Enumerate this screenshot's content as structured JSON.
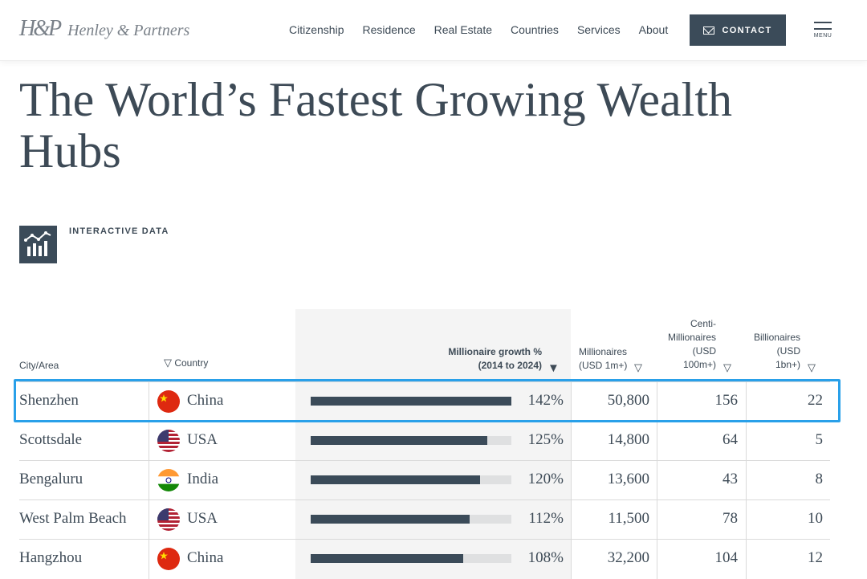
{
  "header": {
    "logo_mark": "H&P",
    "logo_text": "Henley & Partners",
    "nav": [
      "Citizenship",
      "Residence",
      "Real Estate",
      "Countries",
      "Services",
      "About"
    ],
    "contact_label": "CONTACT",
    "menu_label": "MENU"
  },
  "page_title": "The World’s Fastest Growing Wealth Hubs",
  "interactive_label": "INTERACTIVE DATA",
  "table": {
    "headers": {
      "city": "City/Area",
      "country": "Country",
      "growth_line1": "Millionaire growth %",
      "growth_line2": "(2014 to 2024)",
      "millionaires_line1": "Millionaires",
      "millionaires_line2": "(USD 1m+)",
      "centi_line1": "Centi-",
      "centi_line2": "Millionaires",
      "centi_line3": "(USD",
      "centi_line4": "100m+)",
      "billionaires_line1": "Billionaires",
      "billionaires_line2": "(USD",
      "billionaires_line3": "1bn+)"
    },
    "sort_icons": {
      "country": "▽",
      "growth": "▼",
      "millionaires": "▽",
      "centi": "▽",
      "billionaires": "▽"
    },
    "rows": [
      {
        "city": "Shenzhen",
        "country": "China",
        "flag": "china-flag-icon",
        "growth": "142%",
        "growth_fraction": 1.0,
        "millionaires": "50,800",
        "centi": "156",
        "billionaires": "22"
      },
      {
        "city": "Scottsdale",
        "country": "USA",
        "flag": "usa-flag-icon",
        "growth": "125%",
        "growth_fraction": 0.88,
        "millionaires": "14,800",
        "centi": "64",
        "billionaires": "5"
      },
      {
        "city": "Bengaluru",
        "country": "India",
        "flag": "india-flag-icon",
        "growth": "120%",
        "growth_fraction": 0.845,
        "millionaires": "13,600",
        "centi": "43",
        "billionaires": "8"
      },
      {
        "city": "West Palm Beach",
        "country": "USA",
        "flag": "usa-flag-icon",
        "growth": "112%",
        "growth_fraction": 0.79,
        "millionaires": "11,500",
        "centi": "78",
        "billionaires": "10"
      },
      {
        "city": "Hangzhou",
        "country": "China",
        "flag": "china-flag-icon",
        "growth": "108%",
        "growth_fraction": 0.76,
        "millionaires": "32,200",
        "centi": "104",
        "billionaires": "12"
      }
    ],
    "selected_row": 0
  },
  "colors": {
    "primary": "#3b4b59",
    "bar_track": "#dfe0e1",
    "highlight": "#29a0e9",
    "growth_column_bg": "#f4f4f4"
  }
}
